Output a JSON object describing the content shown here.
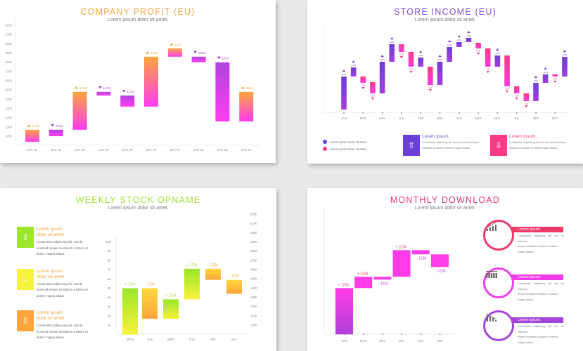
{
  "colors": {
    "orange": "#f5a54a",
    "purple": "#7a4fd6",
    "pink": "#ff3a86",
    "magenta": "#ff3ce8",
    "green": "#9be33a",
    "violet": "#a544d8"
  },
  "chart_data": [
    {
      "type": "bar",
      "variant": "waterfall",
      "title": "COMPANY PROFIT (EU)",
      "subtitle": "Lorem ipsum dolor sit amet.",
      "ylim": [
        1000,
        2200
      ],
      "yticks": [
        1000,
        1100,
        1200,
        1300,
        1400,
        1500,
        1600,
        1700,
        1800,
        1900,
        2000,
        2100,
        2200
      ],
      "categories": [
        "DAY 01",
        "DAY 02",
        "DAY 03",
        "DAY 04",
        "DAY 05",
        "DAY 06",
        "DAY 07",
        "DAY 08",
        "DAY 09",
        "DAY 10"
      ],
      "bars": [
        {
          "from": 940,
          "to": 1070,
          "label": "1234"
        },
        {
          "from": 1070,
          "to": 1000,
          "label": "1234"
        },
        {
          "from": 1070,
          "to": 1480,
          "label": "1234"
        },
        {
          "from": 1480,
          "to": 1440,
          "label": "1234"
        },
        {
          "from": 1440,
          "to": 1320,
          "label": "1234"
        },
        {
          "from": 1320,
          "to": 1860,
          "label": "1234"
        },
        {
          "from": 1860,
          "to": 1950,
          "label": "1234"
        },
        {
          "from": 1860,
          "to": 1800,
          "label": "1234"
        },
        {
          "from": 1800,
          "to": 1160,
          "label": "1234"
        },
        {
          "from": 1160,
          "to": 1480,
          "label": "1234"
        }
      ],
      "grid": false
    },
    {
      "type": "bar",
      "variant": "waterfall",
      "title": "STORE INCOME (EU)",
      "subtitle": "Lorem ipsum dolor sit amet.",
      "ylim": [
        0,
        125
      ],
      "xtick_labels": [
        "JAN",
        "MAR",
        "MAY",
        "JUL",
        "SEP",
        "NOV",
        "JAN",
        "MAR",
        "MAY",
        "JUL",
        "SEP",
        "NOV"
      ],
      "bars": [
        {
          "from": 4,
          "to": 51,
          "label": "1234"
        },
        {
          "from": 51,
          "to": 64,
          "label": "1234"
        },
        {
          "from": 51,
          "to": 42,
          "label": "1234"
        },
        {
          "from": 43,
          "to": 27,
          "label": "1234"
        },
        {
          "from": 27,
          "to": 72,
          "label": "1234"
        },
        {
          "from": 72,
          "to": 97,
          "label": "1234"
        },
        {
          "from": 97,
          "to": 86,
          "label": "1234"
        },
        {
          "from": 86,
          "to": 65,
          "label": "1234"
        },
        {
          "from": 65,
          "to": 78,
          "label": "1234"
        },
        {
          "from": 65,
          "to": 39,
          "label": "1234"
        },
        {
          "from": 39,
          "to": 72,
          "label": "1234"
        },
        {
          "from": 72,
          "to": 93,
          "label": "1234"
        },
        {
          "from": 93,
          "to": 100,
          "label": "1234"
        },
        {
          "from": 100,
          "to": 106,
          "label": "1234"
        },
        {
          "from": 99,
          "to": 91,
          "label": "1234"
        },
        {
          "from": 91,
          "to": 65,
          "label": "1234"
        },
        {
          "from": 65,
          "to": 81,
          "label": "1234"
        },
        {
          "from": 81,
          "to": 37,
          "label": "1234"
        },
        {
          "from": 37,
          "to": 27,
          "label": "1234"
        },
        {
          "from": 27,
          "to": 16,
          "label": "1234"
        },
        {
          "from": 16,
          "to": 42,
          "label": "1234"
        },
        {
          "from": 42,
          "to": 54,
          "label": "1234"
        },
        {
          "from": 54,
          "to": 51,
          "label": "1234"
        },
        {
          "from": 51,
          "to": 79,
          "label": "1234"
        }
      ],
      "legend": [
        {
          "label": "Lorem ipsum dolor sit amet.",
          "color": "#6a3fd6"
        },
        {
          "label": "Lorem ipsum dolor sit amet.",
          "color": "#ff3a86"
        }
      ],
      "boxes": [
        {
          "icon": "arrow-up-icon",
          "title": "Lorem ipsum.",
          "text1": "Consectetur adipiscing elit, sed do eiusmod tempor",
          "text2": "incididunt ut labore et dolore magna aliqua."
        },
        {
          "icon": "arrow-down-icon",
          "title": "Lorem ipsum.",
          "text1": "Consectetur adipiscing elit, sed do eiusmod tempor",
          "text2": "incididunt ut labore et dolore magna aliqua."
        }
      ]
    },
    {
      "type": "bar",
      "variant": "waterfall",
      "title": "WEEKLY STOCK OPNAME",
      "subtitle": "Lorem ipsum dolor sit amet.",
      "ylim": [
        0,
        10
      ],
      "yticks_left": [
        "1K",
        "2K",
        "3K",
        "4K",
        "5K",
        "6K",
        "7K",
        "8K",
        "9K",
        "10K"
      ],
      "yticks_right": [
        1000,
        1100,
        1200,
        1300,
        1400,
        1500,
        1600,
        1700,
        1800,
        1900,
        2000,
        2100,
        2200
      ],
      "categories": [
        "MON",
        "TUE",
        "WED",
        "THU",
        "FRI",
        "SAT"
      ],
      "bars": [
        {
          "from": 0,
          "to": 5.0,
          "label": "+ 1234"
        },
        {
          "from": 5.0,
          "to": 1.7,
          "label": "- 1234"
        },
        {
          "from": 1.7,
          "to": 3.8,
          "label": "+ 1234"
        },
        {
          "from": 3.8,
          "to": 7.1,
          "label": "+ 1234"
        },
        {
          "from": 7.1,
          "to": 5.9,
          "label": "- 1234"
        },
        {
          "from": 5.9,
          "to": 4.4,
          "label": "- 1234"
        }
      ],
      "items": [
        {
          "icon": "arrow-up-icon",
          "color": "#9be629",
          "title1": "Lorem ipsum",
          "title2": "dolor sit amet",
          "text1": "Consectetur adipiscing elit, sed do",
          "text2": "eiusmod tempor incididunt ut labore et",
          "text3": "dolore magna aliqua."
        },
        {
          "icon": "arrow-both-icon",
          "color": "#f7f23a",
          "title1": "Lorem ipsum",
          "title2": "dolor sit amet",
          "text1": "Consectetur adipiscing elit, sed do",
          "text2": "eiusmod tempor incididunt ut labore et",
          "text3": "dolore magna aliqua."
        },
        {
          "icon": "arrow-down-icon",
          "color": "#ffa53c",
          "title1": "Lorem ipsum",
          "title2": "dolor sit amet",
          "text1": "Consectetur adipiscing elit, sed do",
          "text2": "eiusmod tempor incididunt ut labore et",
          "text3": "dolore magna aliqua."
        }
      ]
    },
    {
      "type": "bar",
      "variant": "waterfall",
      "title": "MONTHLY DOWNLOAD",
      "subtitle": "Lorem ipsum dolor sit amet.",
      "ylim": [
        0,
        183
      ],
      "categories": [
        "JAN",
        "MAR",
        "MAY",
        "JUL",
        "SEP",
        "NOV"
      ],
      "bars": [
        {
          "from": 0,
          "to": 66,
          "label": "+ 1234"
        },
        {
          "from": 66,
          "to": 82,
          "label": "+ 1234"
        },
        {
          "from": 82,
          "to": 78,
          "label": "- 1234"
        },
        {
          "from": 82,
          "to": 120,
          "label": "+ 1234"
        },
        {
          "from": 120,
          "to": 114,
          "label": "- 1234"
        },
        {
          "from": 114,
          "to": 96,
          "label": "- 1234"
        }
      ],
      "items": [
        {
          "icon": "growth-chart-icon",
          "color": "#f0386b",
          "title": "Lorem ipsum.",
          "text1": "Consectetur adipiscing elit, sed do eiusmod",
          "text2": "tempor incididunt ut labore et dolore",
          "text3": "magna aliqua."
        },
        {
          "icon": "bar-chart-icon",
          "color": "#f03ce8",
          "title": "Lorem ipsum.",
          "text1": "Consectetur adipiscing elit, sed do eiusmod",
          "text2": "tempor incididunt ut labore et dolore",
          "text3": "magna aliqua."
        },
        {
          "icon": "decline-chart-icon",
          "color": "#a544d8",
          "title": "Lorem ipsum.",
          "text1": "Consectetur adipiscing elit, sed do eiusmod",
          "text2": "tempor incididunt ut labore et dolore",
          "text3": "magna aliqua."
        }
      ]
    }
  ]
}
